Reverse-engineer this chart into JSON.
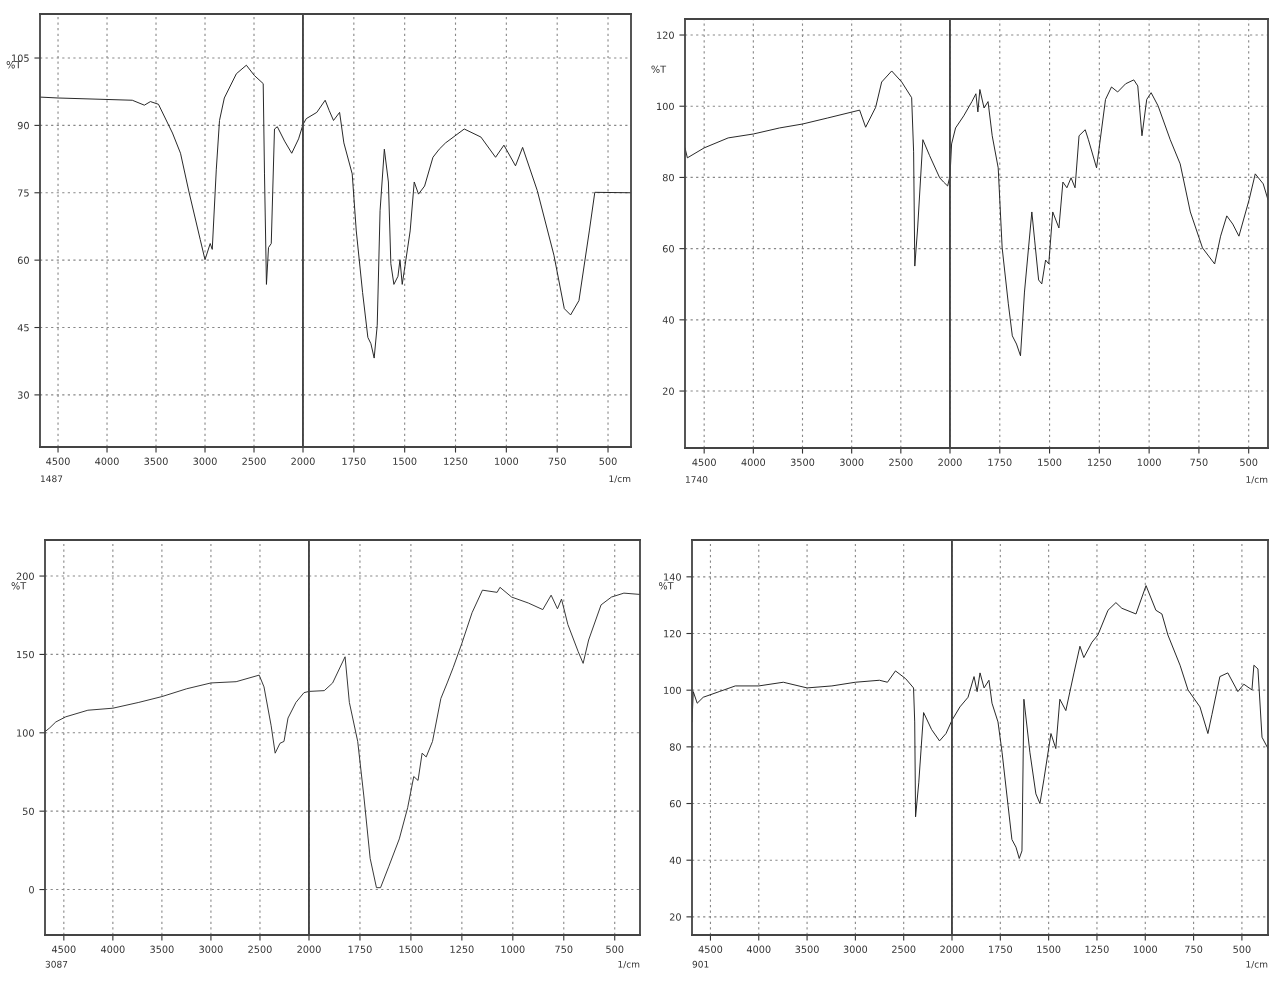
{
  "chart_data": [
    {
      "type": "line",
      "ylabel": "%T",
      "xlim": [
        4684,
        2000
      ],
      "ylim": [
        18.4,
        114.8
      ],
      "xticks": [
        4500,
        4000,
        3500,
        3000,
        2500
      ],
      "yticks": [
        30,
        45,
        60,
        75,
        90,
        105
      ],
      "grid": true,
      "annotations": [
        "1487"
      ],
      "series": [
        {
          "color": "#222222",
          "x": [
            4684,
            4500,
            3742,
            3619,
            3557,
            3475,
            3332,
            3250,
            3168,
            3049,
            3000,
            2947,
            2926,
            2885,
            2852,
            2803,
            2680,
            2578,
            2496,
            2406,
            2393,
            2373,
            2352,
            2324,
            2291,
            2262,
            2188,
            2115,
            2045,
            2000
          ],
          "values": [
            96.3,
            96.1,
            95.6,
            94.5,
            95.3,
            94.7,
            88.3,
            83.8,
            75.6,
            64.6,
            60.1,
            63.7,
            62.4,
            80.1,
            91.1,
            96.1,
            101.5,
            103.4,
            101.1,
            99.3,
            79.2,
            54.6,
            62.8,
            63.7,
            89.2,
            89.7,
            86.5,
            83.8,
            87.0,
            90.2
          ]
        }
      ]
    },
    {
      "type": "line",
      "xlim": [
        2000,
        387
      ],
      "ylim": [
        18.4,
        114.8
      ],
      "xticks": [
        2000,
        1750,
        1500,
        1250,
        1000,
        750,
        500
      ],
      "yticks": [
        30,
        45,
        60,
        75,
        90,
        105
      ],
      "tick_labels": "x",
      "grid": true,
      "annotations": [
        "1/cm"
      ],
      "series": [
        {
          "color": "#222222",
          "x": [
            2000,
            1984,
            1932,
            1891,
            1871,
            1850,
            1820,
            1799,
            1758,
            1738,
            1707,
            1681,
            1666,
            1650,
            1635,
            1621,
            1600,
            1580,
            1568,
            1553,
            1533,
            1523,
            1512,
            1473,
            1453,
            1432,
            1402,
            1361,
            1330,
            1299,
            1207,
            1125,
            1053,
            1012,
            955,
            920,
            848,
            766,
            715,
            684,
            643,
            592,
            565,
            387
          ],
          "values": [
            90.2,
            91.5,
            92.9,
            95.6,
            93.3,
            91.1,
            92.9,
            86.1,
            79.2,
            66.5,
            52.8,
            42.8,
            41.4,
            38.2,
            45.5,
            71.0,
            84.7,
            77.4,
            59.2,
            54.6,
            56.4,
            60.1,
            54.6,
            66.5,
            77.4,
            74.7,
            76.5,
            82.9,
            84.7,
            86.1,
            89.2,
            87.4,
            82.9,
            85.6,
            81.0,
            85.1,
            75.5,
            61.1,
            49.2,
            47.8,
            51.0,
            66.5,
            75.1,
            75.0
          ]
        }
      ]
    },
    {
      "type": "line",
      "ylabel": "%T",
      "xlim": [
        4695,
        2000
      ],
      "ylim": [
        4.0,
        124.5
      ],
      "xticks": [
        4500,
        4000,
        3500,
        3000,
        2500
      ],
      "yticks": [
        20,
        40,
        60,
        80,
        100,
        120
      ],
      "grid": true,
      "annotations": [
        "1740"
      ],
      "series": [
        {
          "color": "#222222",
          "x": [
            4695,
            4671,
            4500,
            4256,
            4000,
            3733,
            3500,
            3244,
            2919,
            2858,
            2756,
            2695,
            2593,
            2491,
            2390,
            2370,
            2358,
            2329,
            2276,
            2207,
            2105,
            2065,
            2024,
            2000
          ],
          "values": [
            88.3,
            85.5,
            88.3,
            91.1,
            92.2,
            93.9,
            95.0,
            96.7,
            98.9,
            94.1,
            99.7,
            106.8,
            109.9,
            106.8,
            102.4,
            87.2,
            55.1,
            65.8,
            90.6,
            86.1,
            79.9,
            78.7,
            77.6,
            80.4
          ]
        }
      ]
    },
    {
      "type": "line",
      "xlim": [
        2000,
        403
      ],
      "ylim": [
        4.0,
        124.5
      ],
      "xticks": [
        2000,
        1750,
        1500,
        1250,
        1000,
        750,
        500
      ],
      "yticks": [
        20,
        40,
        60,
        80,
        100,
        120
      ],
      "tick_labels": "x",
      "grid": true,
      "annotations": [
        "1/cm"
      ],
      "series": [
        {
          "color": "#222222",
          "x": [
            2000,
            1992,
            1972,
            1931,
            1890,
            1870,
            1860,
            1850,
            1829,
            1809,
            1788,
            1758,
            1738,
            1707,
            1687,
            1666,
            1646,
            1626,
            1589,
            1575,
            1555,
            1539,
            1520,
            1504,
            1484,
            1453,
            1433,
            1413,
            1392,
            1372,
            1352,
            1321,
            1305,
            1264,
            1219,
            1189,
            1158,
            1118,
            1077,
            1057,
            1036,
            1012,
            990,
            955,
            894,
            844,
            793,
            732,
            671,
            641,
            610,
            580,
            549,
            498,
            467,
            427,
            403
          ],
          "values": [
            80.4,
            89.4,
            93.9,
            97.3,
            101.3,
            103.5,
            98.4,
            104.7,
            99.5,
            101.3,
            91.7,
            82.7,
            60.2,
            44.5,
            35.5,
            33.2,
            29.9,
            47.8,
            70.3,
            62.4,
            51.2,
            50.1,
            56.8,
            55.7,
            70.3,
            65.8,
            78.7,
            77.1,
            79.9,
            77.1,
            91.7,
            93.4,
            90.6,
            82.7,
            101.9,
            105.4,
            104.0,
            106.3,
            107.4,
            105.7,
            91.7,
            101.9,
            103.8,
            100.1,
            90.6,
            83.8,
            70.3,
            60.2,
            55.7,
            63.5,
            69.2,
            66.9,
            63.5,
            73.7,
            81.0,
            78.2,
            73.7
          ]
        }
      ]
    },
    {
      "type": "line",
      "ylabel": "%T",
      "xlim": [
        4692,
        2000
      ],
      "ylim": [
        -29,
        223
      ],
      "xticks": [
        4500,
        4000,
        3500,
        3000,
        2500
      ],
      "yticks": [
        0,
        50,
        100,
        150,
        200
      ],
      "grid": true,
      "annotations": [
        "3087"
      ],
      "series": [
        {
          "color": "#333333",
          "x": [
            4692,
            4643,
            4582,
            4480,
            4255,
            4000,
            3735,
            3500,
            3247,
            3000,
            2743,
            2508,
            2459,
            2386,
            2345,
            2296,
            2255,
            2214,
            2133,
            2051,
            2000
          ],
          "values": [
            100.7,
            103.2,
            106.9,
            110.2,
            114.4,
            115.7,
            119.4,
            123.1,
            128.1,
            131.8,
            132.6,
            136.8,
            129.3,
            104.5,
            87.0,
            93.3,
            94.5,
            109.4,
            119.4,
            125.6,
            126.4
          ]
        }
      ]
    },
    {
      "type": "line",
      "xlim": [
        2000,
        376
      ],
      "ylim": [
        -29,
        223
      ],
      "xticks": [
        2000,
        1750,
        1500,
        1250,
        1000,
        750,
        500
      ],
      "yticks": [
        0,
        50,
        100,
        150,
        200
      ],
      "tick_labels": "x",
      "grid": true,
      "annotations": [
        "1/cm"
      ],
      "series": [
        {
          "color": "#333333",
          "x": [
            2000,
            1925,
            1884,
            1823,
            1802,
            1761,
            1731,
            1700,
            1669,
            1649,
            1608,
            1557,
            1516,
            1486,
            1465,
            1445,
            1425,
            1394,
            1353,
            1322,
            1292,
            1251,
            1200,
            1149,
            1077,
            1063,
            1006,
            924,
            853,
            812,
            781,
            761,
            730,
            679,
            655,
            628,
            567,
            516,
            455,
            378
          ],
          "values": [
            126.4,
            126.9,
            131.8,
            148.5,
            119.4,
            94.5,
            59.7,
            19.9,
            1.2,
            1.2,
            14.9,
            32.3,
            52.2,
            72.1,
            69.6,
            87.0,
            84.6,
            94.5,
            121.9,
            131.8,
            141.8,
            156.7,
            176.6,
            191.0,
            189.6,
            192.8,
            186.6,
            182.8,
            178.6,
            187.8,
            179.1,
            185.3,
            169.1,
            151.7,
            144.3,
            159.2,
            181.6,
            186.6,
            189.1,
            188.3
          ]
        }
      ]
    },
    {
      "type": "line",
      "ylabel": "%T",
      "xlim": [
        4691,
        2000
      ],
      "ylim": [
        13.6,
        153
      ],
      "xticks": [
        4500,
        4000,
        3500,
        3000,
        2500
      ],
      "yticks": [
        20,
        40,
        60,
        80,
        100,
        120,
        140
      ],
      "grid": true,
      "annotations": [
        "901"
      ],
      "series": [
        {
          "color": "#222222",
          "x": [
            4691,
            4678,
            4637,
            4575,
            4409,
            4243,
            4000,
            3746,
            3500,
            3243,
            3000,
            2751,
            2668,
            2585,
            2481,
            2398,
            2386,
            2377,
            2344,
            2294,
            2211,
            2129,
            2062,
            2000
          ],
          "values": [
            88.8,
            99.5,
            95.4,
            97.5,
            99.5,
            101.5,
            101.5,
            102.8,
            100.8,
            101.5,
            102.8,
            103.5,
            102.8,
            106.8,
            104.1,
            100.8,
            88.8,
            55.3,
            67.3,
            92.1,
            86.1,
            82.1,
            84.7,
            89.4
          ]
        }
      ]
    },
    {
      "type": "line",
      "xlim": [
        2000,
        365
      ],
      "ylim": [
        13.6,
        153
      ],
      "xticks": [
        2000,
        1750,
        1500,
        1250,
        1000,
        750,
        500
      ],
      "yticks": [
        20,
        40,
        60,
        80,
        100,
        120,
        140
      ],
      "tick_labels": "x",
      "grid": true,
      "annotations": [
        "1/cm"
      ],
      "series": [
        {
          "color": "#222222",
          "x": [
            2000,
            1959,
            1917,
            1886,
            1870,
            1855,
            1834,
            1809,
            1793,
            1762,
            1741,
            1710,
            1690,
            1669,
            1652,
            1638,
            1628,
            1597,
            1566,
            1545,
            1524,
            1488,
            1463,
            1442,
            1411,
            1369,
            1338,
            1318,
            1276,
            1245,
            1193,
            1152,
            1121,
            1048,
            996,
            945,
            914,
            883,
            820,
            779,
            717,
            676,
            655,
            614,
            573,
            521,
            490,
            448,
            438,
            417,
            396,
            365
          ],
          "values": [
            89.4,
            94.1,
            97.5,
            104.8,
            99.5,
            106.1,
            100.8,
            103.5,
            95.4,
            88.8,
            78.1,
            59.3,
            47.3,
            44.6,
            40.6,
            43.3,
            96.8,
            78.1,
            63.4,
            60.0,
            68.7,
            84.7,
            79.4,
            96.8,
            92.8,
            106.1,
            115.5,
            111.5,
            116.9,
            119.5,
            128.2,
            130.9,
            128.9,
            126.9,
            136.9,
            128.2,
            126.9,
            119.5,
            108.8,
            100.1,
            94.1,
            84.7,
            91.4,
            104.8,
            106.1,
            99.5,
            102.1,
            100.1,
            108.8,
            107.5,
            83.4,
            79.4
          ]
        }
      ]
    }
  ]
}
